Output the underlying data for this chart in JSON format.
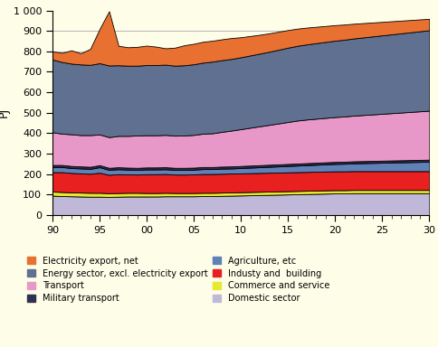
{
  "years": [
    90,
    91,
    92,
    93,
    94,
    95,
    96,
    97,
    98,
    99,
    100,
    101,
    102,
    103,
    104,
    105,
    106,
    107,
    108,
    109,
    110,
    111,
    112,
    113,
    114,
    115,
    116,
    117,
    118,
    119,
    120,
    121,
    122,
    123,
    124,
    125,
    126,
    127,
    128,
    129,
    130
  ],
  "ylabel": "PJ",
  "xlim": [
    90,
    130
  ],
  "ylim": [
    0,
    1000
  ],
  "background_color": "#fdfde8",
  "domestic": [
    95,
    93,
    92,
    91,
    90,
    90,
    89,
    90,
    91,
    91,
    91,
    91,
    92,
    92,
    92,
    92,
    93,
    93,
    94,
    95,
    96,
    97,
    98,
    99,
    100,
    101,
    102,
    103,
    104,
    105,
    106,
    106,
    107,
    107,
    107,
    107,
    107,
    107,
    107,
    107,
    107
  ],
  "commerce": [
    20,
    20,
    19,
    19,
    19,
    19,
    18,
    18,
    18,
    18,
    17,
    17,
    17,
    16,
    16,
    16,
    16,
    16,
    16,
    16,
    16,
    16,
    16,
    16,
    16,
    16,
    16,
    16,
    16,
    16,
    16,
    16,
    16,
    16,
    16,
    16,
    16,
    16,
    16,
    16,
    16
  ],
  "industry": [
    95,
    97,
    95,
    94,
    93,
    98,
    90,
    92,
    90,
    89,
    92,
    92,
    92,
    90,
    90,
    91,
    92,
    92,
    92,
    92,
    92,
    92,
    92,
    92,
    92,
    92,
    92,
    92,
    92,
    92,
    92,
    92,
    92,
    92,
    92,
    92,
    92,
    92,
    92,
    92,
    92
  ],
  "agriculture": [
    25,
    25,
    24,
    24,
    24,
    27,
    24,
    24,
    23,
    23,
    23,
    23,
    23,
    23,
    23,
    23,
    24,
    24,
    25,
    25,
    26,
    27,
    28,
    29,
    30,
    31,
    32,
    33,
    34,
    35,
    36,
    37,
    38,
    39,
    40,
    41,
    42,
    43,
    44,
    45,
    46
  ],
  "military": [
    10,
    10,
    10,
    10,
    10,
    10,
    10,
    10,
    10,
    10,
    10,
    10,
    10,
    10,
    10,
    10,
    10,
    10,
    10,
    10,
    10,
    10,
    10,
    10,
    10,
    10,
    10,
    10,
    10,
    10,
    10,
    10,
    10,
    10,
    10,
    10,
    10,
    10,
    10,
    10,
    10
  ],
  "transport": [
    160,
    153,
    155,
    153,
    155,
    150,
    150,
    153,
    155,
    158,
    157,
    157,
    158,
    157,
    158,
    160,
    163,
    165,
    170,
    175,
    180,
    185,
    190,
    195,
    200,
    205,
    210,
    213,
    215,
    217,
    219,
    221,
    223,
    225,
    227,
    229,
    231,
    233,
    235,
    237,
    239
  ],
  "energy": [
    355,
    350,
    345,
    345,
    343,
    348,
    350,
    345,
    343,
    341,
    343,
    343,
    343,
    342,
    343,
    345,
    347,
    350,
    350,
    350,
    351,
    353,
    355,
    357,
    360,
    363,
    365,
    367,
    369,
    371,
    373,
    375,
    377,
    379,
    381,
    383,
    385,
    387,
    389,
    391,
    393
  ],
  "electricity": [
    40,
    45,
    65,
    55,
    78,
    168,
    265,
    95,
    90,
    92,
    95,
    90,
    80,
    88,
    98,
    100,
    102,
    102,
    102,
    102,
    98,
    95,
    92,
    90,
    88,
    86,
    84,
    82,
    80,
    78,
    76,
    74,
    72,
    70,
    68,
    66,
    64,
    62,
    60,
    58,
    56
  ],
  "xtick_labels": [
    "90",
    "95",
    "00",
    "05",
    "10",
    "15",
    "20",
    "25",
    "30"
  ],
  "xtick_positions": [
    90,
    95,
    100,
    105,
    110,
    115,
    120,
    125,
    130
  ],
  "ytick_vals": [
    0,
    100,
    200,
    300,
    400,
    500,
    600,
    700,
    800,
    900,
    1000
  ],
  "ytick_labels": [
    "0",
    "100",
    "200",
    "300",
    "400",
    "500",
    "600",
    "700",
    "800",
    "900",
    "1 000"
  ],
  "legend_items": [
    [
      "Electricity export, net",
      "#e87030"
    ],
    [
      "Energy sector, excl. electricity export",
      "#607090"
    ],
    [
      "Transport",
      "#e898c8"
    ],
    [
      "Military transport",
      "#303050"
    ],
    [
      "Agriculture, etc",
      "#6080b8"
    ],
    [
      "Industy and  building",
      "#e82020"
    ],
    [
      "Commerce and service",
      "#e8e830"
    ],
    [
      "Domestic sector",
      "#c0b8d8"
    ]
  ],
  "colors": {
    "Domestic sector": "#c0b8d8",
    "Commerce and service": "#e8e830",
    "Industy and  building": "#e82020",
    "Agriculture, etc": "#6080b8",
    "Military transport": "#303050",
    "Transport": "#e898c8",
    "Energy sector, excl. electricity export": "#607090",
    "Electricity export, net": "#e87030"
  }
}
